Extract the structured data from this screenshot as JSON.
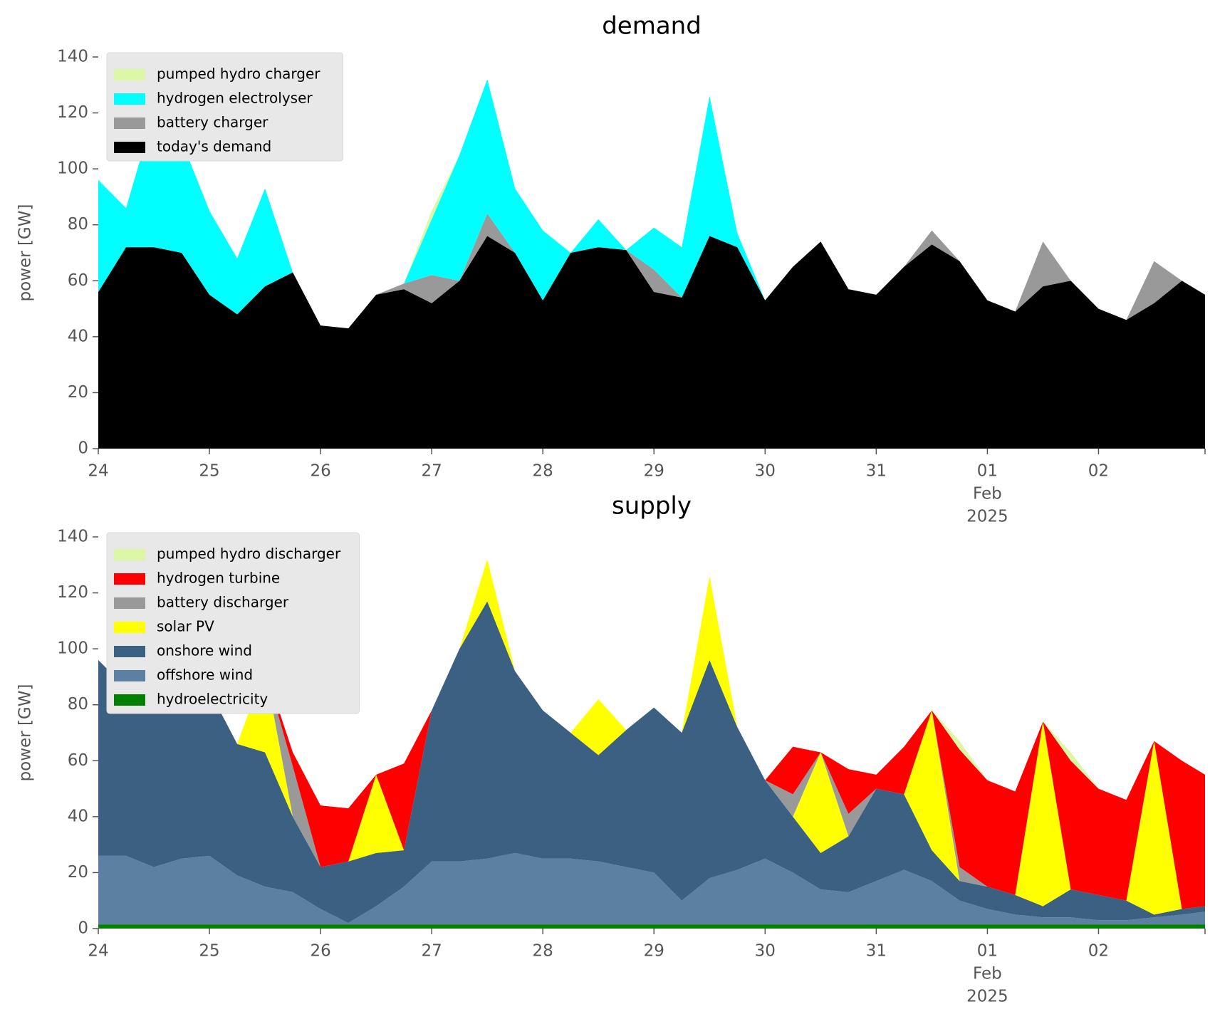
{
  "chart_data": [
    {
      "type": "stacked_area",
      "title": "demand",
      "ylabel": "power [GW]",
      "x": [
        "2025-01-24T00:00",
        "2025-01-24T06:00",
        "2025-01-24T12:00",
        "2025-01-24T18:00",
        "2025-01-25T00:00",
        "2025-01-25T06:00",
        "2025-01-25T12:00",
        "2025-01-25T18:00",
        "2025-01-26T00:00",
        "2025-01-26T06:00",
        "2025-01-26T12:00",
        "2025-01-26T18:00",
        "2025-01-27T00:00",
        "2025-01-27T06:00",
        "2025-01-27T12:00",
        "2025-01-27T18:00",
        "2025-01-28T00:00",
        "2025-01-28T06:00",
        "2025-01-28T12:00",
        "2025-01-28T18:00",
        "2025-01-29T00:00",
        "2025-01-29T06:00",
        "2025-01-29T12:00",
        "2025-01-29T18:00",
        "2025-01-30T00:00",
        "2025-01-30T06:00",
        "2025-01-30T12:00",
        "2025-01-30T18:00",
        "2025-01-31T00:00",
        "2025-01-31T06:00",
        "2025-01-31T12:00",
        "2025-01-31T18:00",
        "2025-02-01T00:00",
        "2025-02-01T06:00",
        "2025-02-01T12:00",
        "2025-02-01T18:00",
        "2025-02-02T00:00",
        "2025-02-02T06:00",
        "2025-02-02T12:00",
        "2025-02-02T18:00",
        "2025-02-02T23:00"
      ],
      "xlim": [
        "2025-01-24T00:00",
        "2025-02-02T23:00"
      ],
      "xticks": [
        {
          "value": "2025-01-24T00:00",
          "label": "24"
        },
        {
          "value": "2025-01-25T00:00",
          "label": "25"
        },
        {
          "value": "2025-01-26T00:00",
          "label": "26"
        },
        {
          "value": "2025-01-27T00:00",
          "label": "27"
        },
        {
          "value": "2025-01-28T00:00",
          "label": "28"
        },
        {
          "value": "2025-01-29T00:00",
          "label": "29"
        },
        {
          "value": "2025-01-30T00:00",
          "label": "30"
        },
        {
          "value": "2025-01-31T00:00",
          "label": "31"
        },
        {
          "value": "2025-02-01T00:00",
          "label": "01"
        },
        {
          "value": "2025-02-02T00:00",
          "label": "02"
        }
      ],
      "x_month": "Feb",
      "x_year": "2025",
      "ylim": [
        0,
        140
      ],
      "yticks": [
        0,
        20,
        40,
        60,
        80,
        100,
        120,
        140
      ],
      "legend": "upper left",
      "series": [
        {
          "name": "today's demand",
          "color": "#000000",
          "values": [
            56,
            72,
            72,
            70,
            55,
            48,
            58,
            63,
            44,
            43,
            55,
            57,
            52,
            60,
            76,
            70,
            53,
            70,
            72,
            71,
            56,
            54,
            76,
            72,
            53,
            65,
            74,
            57,
            55,
            65,
            73,
            67,
            53,
            49,
            58,
            60,
            50,
            46,
            52,
            60,
            55
          ]
        },
        {
          "name": "battery charger",
          "color": "#999999",
          "values": [
            0,
            0,
            0,
            0,
            0,
            0,
            0,
            0,
            0,
            0,
            0,
            2,
            10,
            0,
            8,
            0,
            0,
            0,
            0,
            0,
            8,
            0,
            0,
            0,
            0,
            0,
            0,
            0,
            0,
            0,
            5,
            0,
            0,
            0,
            16,
            0,
            0,
            0,
            15,
            0,
            0
          ]
        },
        {
          "name": "hydrogen electrolyser",
          "color": "#00ffff",
          "values": [
            40,
            14,
            48,
            40,
            30,
            20,
            35,
            0,
            0,
            0,
            0,
            0,
            20,
            45,
            48,
            23,
            25,
            0,
            10,
            0,
            15,
            18,
            50,
            5,
            0,
            0,
            0,
            0,
            0,
            0,
            0,
            0,
            0,
            0,
            0,
            0,
            0,
            0,
            0,
            0,
            0
          ]
        },
        {
          "name": "pumped hydro charger",
          "color": "#dcf7a6",
          "values": [
            0,
            0,
            0,
            0,
            0,
            0,
            0,
            0,
            0,
            0,
            0,
            0,
            3,
            0,
            0,
            0,
            0,
            0,
            0,
            0,
            0,
            0,
            0,
            0,
            0,
            0,
            0,
            0,
            0,
            0,
            0,
            0,
            0,
            0,
            0,
            0,
            0,
            0,
            0,
            0,
            0
          ]
        }
      ]
    },
    {
      "type": "stacked_area",
      "title": "supply",
      "ylabel": "power [GW]",
      "x": [
        "2025-01-24T00:00",
        "2025-01-24T06:00",
        "2025-01-24T12:00",
        "2025-01-24T18:00",
        "2025-01-25T00:00",
        "2025-01-25T06:00",
        "2025-01-25T12:00",
        "2025-01-25T18:00",
        "2025-01-26T00:00",
        "2025-01-26T06:00",
        "2025-01-26T12:00",
        "2025-01-26T18:00",
        "2025-01-27T00:00",
        "2025-01-27T06:00",
        "2025-01-27T12:00",
        "2025-01-27T18:00",
        "2025-01-28T00:00",
        "2025-01-28T06:00",
        "2025-01-28T12:00",
        "2025-01-28T18:00",
        "2025-01-29T00:00",
        "2025-01-29T06:00",
        "2025-01-29T12:00",
        "2025-01-29T18:00",
        "2025-01-30T00:00",
        "2025-01-30T06:00",
        "2025-01-30T12:00",
        "2025-01-30T18:00",
        "2025-01-31T00:00",
        "2025-01-31T06:00",
        "2025-01-31T12:00",
        "2025-01-31T18:00",
        "2025-02-01T00:00",
        "2025-02-01T06:00",
        "2025-02-01T12:00",
        "2025-02-01T18:00",
        "2025-02-02T00:00",
        "2025-02-02T06:00",
        "2025-02-02T12:00",
        "2025-02-02T18:00",
        "2025-02-02T23:00"
      ],
      "xlim": [
        "2025-01-24T00:00",
        "2025-02-02T23:00"
      ],
      "xticks": [
        {
          "value": "2025-01-24T00:00",
          "label": "24"
        },
        {
          "value": "2025-01-25T00:00",
          "label": "25"
        },
        {
          "value": "2025-01-26T00:00",
          "label": "26"
        },
        {
          "value": "2025-01-27T00:00",
          "label": "27"
        },
        {
          "value": "2025-01-28T00:00",
          "label": "28"
        },
        {
          "value": "2025-01-29T00:00",
          "label": "29"
        },
        {
          "value": "2025-01-30T00:00",
          "label": "30"
        },
        {
          "value": "2025-01-31T00:00",
          "label": "31"
        },
        {
          "value": "2025-02-01T00:00",
          "label": "01"
        },
        {
          "value": "2025-02-02T00:00",
          "label": "02"
        }
      ],
      "x_month": "Feb",
      "x_year": "2025",
      "ylim": [
        0,
        140
      ],
      "yticks": [
        0,
        20,
        40,
        60,
        80,
        100,
        120,
        140
      ],
      "legend": "upper left",
      "series": [
        {
          "name": "hydroelectricity",
          "color": "#008000",
          "values": [
            1.5,
            1.5,
            1.5,
            1.5,
            1.5,
            1.5,
            1.5,
            1.5,
            1.5,
            1.5,
            1.5,
            1.5,
            1.5,
            1.5,
            1.5,
            1.5,
            1.5,
            1.5,
            1.5,
            1.5,
            1.5,
            1.5,
            1.5,
            1.5,
            1.5,
            1.5,
            1.5,
            1.5,
            1.5,
            1.5,
            1.5,
            1.5,
            1.5,
            1.5,
            1.5,
            1.5,
            1.5,
            1.5,
            1.5,
            1.5,
            1.5
          ]
        },
        {
          "name": "offshore wind",
          "color": "#5b80a2",
          "values": [
            24.5,
            24.5,
            20.5,
            23.5,
            24.5,
            17.5,
            13.5,
            11.5,
            5.5,
            0.5,
            6.5,
            13.5,
            22.5,
            22.5,
            23.5,
            25.5,
            23.5,
            23.5,
            22.5,
            20.5,
            18.5,
            8.5,
            16.5,
            19.5,
            23.5,
            18.5,
            12.5,
            11.5,
            15.5,
            19.5,
            15.5,
            8.5,
            5.5,
            3.5,
            2.5,
            2.5,
            1.5,
            1.5,
            2.5,
            3.5,
            4.5
          ]
        },
        {
          "name": "onshore wind",
          "color": "#3c6082",
          "values": [
            70,
            60,
            83,
            80,
            59,
            47,
            48,
            27,
            15,
            22,
            19,
            13,
            54,
            76,
            92,
            65,
            53,
            45,
            38,
            49,
            59,
            60,
            78,
            51,
            28,
            20,
            13,
            20,
            33,
            27,
            11,
            7,
            8,
            7,
            4,
            10,
            9,
            7,
            1,
            2,
            2
          ]
        },
        {
          "name": "solar PV",
          "color": "#ffff00",
          "values": [
            0,
            0,
            15,
            0,
            0,
            0,
            30,
            0,
            0,
            0,
            28,
            0,
            0,
            0,
            15,
            0,
            0,
            0,
            20,
            0,
            0,
            0,
            30,
            0,
            0,
            0,
            36,
            0,
            0,
            0,
            50,
            0,
            0,
            0,
            66,
            0,
            0,
            0,
            62,
            0,
            0
          ]
        },
        {
          "name": "battery discharger",
          "color": "#999999",
          "values": [
            0,
            0,
            0,
            0,
            0,
            0,
            0,
            18,
            0,
            0,
            0,
            0,
            0,
            0,
            0,
            0,
            0,
            0,
            0,
            0,
            0,
            0,
            0,
            0,
            0,
            8,
            0,
            8,
            0,
            0,
            0,
            5,
            0,
            0,
            0,
            0,
            0,
            0,
            0,
            0,
            0
          ]
        },
        {
          "name": "hydrogen turbine",
          "color": "#ff0000",
          "values": [
            0,
            0,
            0,
            0,
            0,
            0,
            0,
            5,
            22,
            19,
            0,
            31,
            0,
            0,
            0,
            0,
            0,
            0,
            0,
            0,
            0,
            0,
            0,
            0,
            0,
            17,
            0,
            16,
            5,
            17,
            0,
            42,
            38,
            37,
            0,
            46,
            38,
            36,
            0,
            53,
            47
          ]
        },
        {
          "name": "pumped hydro discharger",
          "color": "#dcf7a6",
          "values": [
            0,
            0,
            0,
            0,
            0,
            0,
            0,
            0,
            0,
            0,
            0,
            0,
            0,
            0,
            0,
            0,
            0,
            0,
            0,
            0,
            0,
            0,
            0,
            0,
            0,
            0,
            0,
            0,
            0,
            0,
            0,
            3,
            0,
            0,
            0,
            3,
            0,
            0,
            0,
            0,
            0
          ]
        }
      ]
    }
  ]
}
